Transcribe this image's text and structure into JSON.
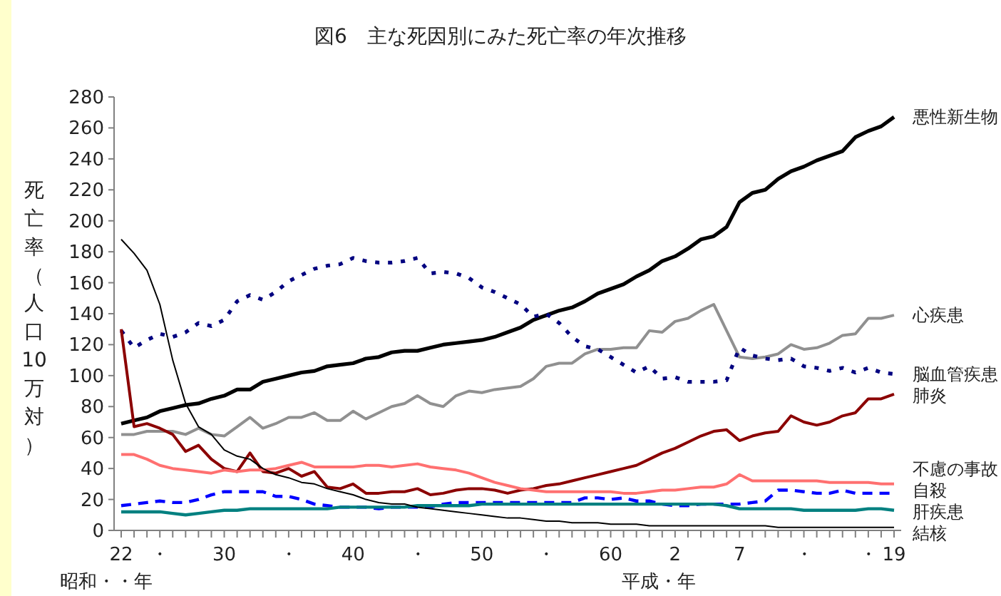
{
  "chart_data": {
    "type": "line",
    "title": "図6　主な死因別にみた死亡率の年次推移",
    "ylabel": "死亡率（人口10万対）",
    "xlabel": "昭和・・年",
    "annotations": [
      "平成・年"
    ],
    "categories": [
      "22",
      null,
      null,
      "・",
      null,
      null,
      null,
      null,
      "30",
      null,
      null,
      null,
      null,
      "・",
      null,
      null,
      null,
      null,
      "40",
      null,
      null,
      null,
      null,
      "・",
      null,
      null,
      null,
      null,
      "50",
      null,
      null,
      null,
      null,
      "・",
      null,
      null,
      null,
      null,
      "60",
      null,
      null,
      null,
      null,
      "2",
      null,
      null,
      null,
      null,
      "7",
      null,
      null,
      null,
      null,
      "・",
      null,
      null,
      null,
      null,
      "・",
      null,
      "19"
    ],
    "ylim": [
      0,
      280
    ],
    "yticks": [
      0,
      20,
      40,
      60,
      80,
      100,
      120,
      140,
      160,
      180,
      200,
      220,
      240,
      260,
      280
    ],
    "grid": false,
    "series": [
      {
        "name": "悪性新生物",
        "color": "#000000",
        "line_style": "solid",
        "values": [
          69,
          71,
          73,
          77,
          79,
          81,
          82,
          85,
          87,
          91,
          91,
          96,
          98,
          100,
          102,
          103,
          106,
          107,
          108,
          111,
          112,
          115,
          116,
          116,
          118,
          120,
          121,
          122,
          123,
          125,
          128,
          131,
          136,
          139,
          142,
          144,
          148,
          153,
          156,
          159,
          164,
          168,
          174,
          177,
          182,
          188,
          190,
          196,
          212,
          218,
          220,
          227,
          232,
          235,
          239,
          242,
          245,
          254,
          258,
          261,
          267
        ]
      },
      {
        "name": "心疾患",
        "color": "#909090",
        "line_style": "solid",
        "values": [
          62,
          62,
          64,
          64,
          64,
          62,
          66,
          62,
          61,
          67,
          73,
          66,
          69,
          73,
          73,
          76,
          71,
          71,
          77,
          72,
          76,
          80,
          82,
          87,
          82,
          80,
          87,
          90,
          89,
          91,
          92,
          93,
          98,
          106,
          108,
          108,
          114,
          117,
          117,
          118,
          118,
          129,
          128,
          135,
          137,
          142,
          146,
          129,
          112,
          111,
          112,
          114,
          120,
          117,
          118,
          121,
          126,
          127,
          137,
          137,
          139
        ]
      },
      {
        "name": "脳血管疾患",
        "color": "#000080",
        "line_style": "dotted",
        "values": [
          129,
          118,
          123,
          127,
          125,
          128,
          134,
          132,
          136,
          148,
          152,
          149,
          154,
          161,
          165,
          169,
          171,
          172,
          176,
          174,
          173,
          173,
          174,
          176,
          166,
          167,
          166,
          163,
          157,
          154,
          150,
          146,
          138,
          140,
          134,
          125,
          119,
          117,
          112,
          107,
          102,
          106,
          98,
          99,
          96,
          96,
          96,
          97,
          118,
          113,
          111,
          110,
          111,
          106,
          105,
          103,
          105,
          102,
          105,
          102,
          101
        ]
      },
      {
        "name": "肺炎",
        "color": "#8b0000",
        "line_style": "solid",
        "values": [
          130,
          67,
          69,
          66,
          62,
          51,
          55,
          46,
          40,
          38,
          50,
          38,
          37,
          40,
          35,
          38,
          28,
          27,
          30,
          24,
          24,
          25,
          25,
          27,
          23,
          24,
          26,
          27,
          27,
          26,
          24,
          26,
          27,
          29,
          30,
          32,
          34,
          36,
          38,
          40,
          42,
          46,
          50,
          53,
          57,
          61,
          64,
          65,
          58,
          61,
          63,
          64,
          74,
          70,
          68,
          70,
          74,
          76,
          85,
          85,
          88
        ]
      },
      {
        "name": "不慮の事故",
        "color": "#ff7070",
        "line_style": "solid",
        "values": [
          49,
          49,
          46,
          42,
          40,
          39,
          38,
          37,
          39,
          38,
          39,
          39,
          40,
          42,
          44,
          41,
          41,
          41,
          41,
          42,
          42,
          41,
          42,
          43,
          41,
          40,
          39,
          37,
          34,
          31,
          29,
          27,
          26,
          25,
          25,
          25,
          25,
          25,
          25,
          24,
          24,
          25,
          26,
          26,
          27,
          28,
          28,
          30,
          36,
          32,
          32,
          32,
          32,
          32,
          32,
          31,
          31,
          31,
          31,
          30,
          30
        ]
      },
      {
        "name": "自殺",
        "color": "#0000ff",
        "line_style": "dashed",
        "values": [
          16,
          17,
          18,
          19,
          18,
          18,
          20,
          23,
          25,
          25,
          25,
          25,
          22,
          22,
          20,
          17,
          16,
          15,
          15,
          15,
          14,
          15,
          15,
          15,
          15,
          17,
          18,
          18,
          18,
          18,
          18,
          18,
          18,
          18,
          18,
          18,
          21,
          21,
          20,
          21,
          19,
          19,
          17,
          16,
          16,
          17,
          17,
          17,
          17,
          18,
          19,
          26,
          26,
          25,
          24,
          24,
          26,
          24,
          24,
          24,
          24
        ]
      },
      {
        "name": "肝疾患",
        "color": "#008080",
        "line_style": "solid",
        "values": [
          12,
          12,
          12,
          12,
          11,
          10,
          11,
          12,
          13,
          13,
          14,
          14,
          14,
          14,
          14,
          14,
          14,
          15,
          15,
          15,
          15,
          15,
          15,
          16,
          16,
          16,
          16,
          16,
          17,
          17,
          17,
          17,
          17,
          17,
          17,
          17,
          17,
          17,
          17,
          17,
          17,
          17,
          17,
          17,
          17,
          17,
          17,
          16,
          14,
          14,
          14,
          14,
          14,
          13,
          13,
          13,
          13,
          13,
          14,
          14,
          13
        ]
      },
      {
        "name": "結核",
        "color": "#000000",
        "line_style": "solid",
        "values": [
          188,
          179,
          168,
          146,
          110,
          82,
          67,
          62,
          52,
          48,
          46,
          40,
          36,
          34,
          31,
          30,
          27,
          25,
          23,
          20,
          18,
          17,
          17,
          15,
          14,
          13,
          12,
          11,
          10,
          9,
          8,
          8,
          7,
          6,
          6,
          5,
          5,
          5,
          4,
          4,
          4,
          3,
          3,
          3,
          3,
          3,
          3,
          3,
          3,
          3,
          3,
          2,
          2,
          2,
          2,
          2,
          2,
          2,
          2,
          2,
          2
        ]
      }
    ]
  }
}
